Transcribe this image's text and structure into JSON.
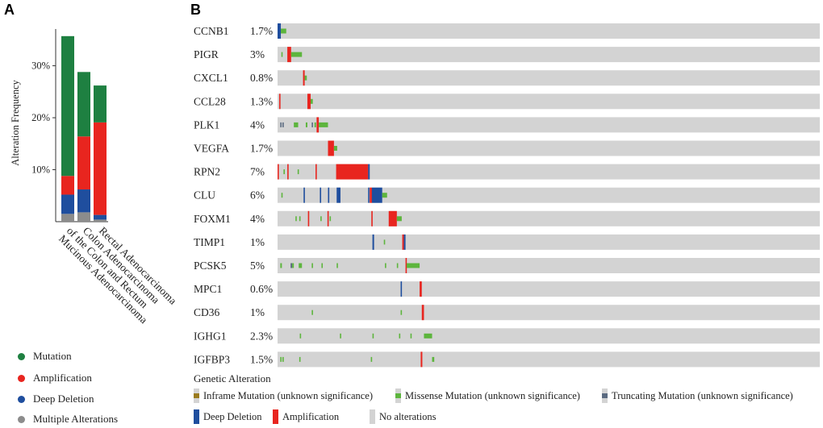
{
  "panel_a": {
    "letter": "A",
    "chart_data": {
      "type": "bar",
      "stacked": true,
      "ylabel": "Alteration Frequency",
      "ylim": [
        0,
        38
      ],
      "yticks": [
        10,
        20,
        30
      ],
      "ytick_labels": [
        "10%",
        "20%",
        "30%"
      ],
      "categories": [
        "Mucinous Adenocarcinoma of the Colon and Rectum",
        "Colon Adenocarcinoma",
        "Rectal Adenocarcinoma"
      ],
      "category_label_lines": [
        [
          "Mucinous Adenocarcinoma",
          "of the Colon and Rectum"
        ],
        [
          "Colon Adenocarcinoma"
        ],
        [
          "Rectal Adenocarcinoma"
        ]
      ],
      "series": [
        {
          "name": "Multiple Alterations",
          "color": "#8c8c8c",
          "values": [
            1.5,
            1.8,
            0.4
          ]
        },
        {
          "name": "Deep Deletion",
          "color": "#1f4e9e",
          "values": [
            3.7,
            4.4,
            0.9
          ]
        },
        {
          "name": "Amplification",
          "color": "#e8251f",
          "values": [
            3.6,
            10.2,
            17.8
          ]
        },
        {
          "name": "Mutation",
          "color": "#1e8041",
          "values": [
            26.9,
            12.4,
            7.1
          ]
        }
      ]
    },
    "legend": [
      {
        "label": "Mutation",
        "color": "#1e8041"
      },
      {
        "label": "Amplification",
        "color": "#e8251f"
      },
      {
        "label": "Deep Deletion",
        "color": "#1f4e9e"
      },
      {
        "label": "Multiple Alterations",
        "color": "#8c8c8c"
      }
    ]
  },
  "panel_b": {
    "letter": "B",
    "chart_data": {
      "type": "oncoprint",
      "sample_axis": "fraction of samples (0-1)",
      "colors": {
        "background": "#d3d3d3",
        "missense": "#5db53d",
        "inframe": "#9a7b1e",
        "truncating": "#5a6a80",
        "amplification": "#e8251f",
        "deep_deletion": "#1f4e9e"
      },
      "genes": [
        {
          "name": "CCNB1",
          "pct": "1.7%",
          "events": [
            {
              "t": "deep_deletion",
              "s": 0.0,
              "e": 0.006
            },
            {
              "t": "missense",
              "s": 0.006,
              "e": 0.016,
              "h": "small"
            }
          ]
        },
        {
          "name": "PIGR",
          "pct": "3%",
          "events": [
            {
              "t": "missense",
              "s": 0.007,
              "e": 0.009,
              "h": "small"
            },
            {
              "t": "amplification",
              "s": 0.018,
              "e": 0.025
            },
            {
              "t": "missense",
              "s": 0.025,
              "e": 0.045,
              "h": "small"
            }
          ]
        },
        {
          "name": "CXCL1",
          "pct": "0.8%",
          "events": [
            {
              "t": "amplification",
              "s": 0.047,
              "e": 0.05
            },
            {
              "t": "missense",
              "s": 0.05,
              "e": 0.054,
              "h": "small"
            }
          ]
        },
        {
          "name": "CCL28",
          "pct": "1.3%",
          "events": [
            {
              "t": "amplification",
              "s": 0.003,
              "e": 0.005
            },
            {
              "t": "amplification",
              "s": 0.055,
              "e": 0.061
            },
            {
              "t": "missense",
              "s": 0.061,
              "e": 0.065,
              "h": "small"
            }
          ]
        },
        {
          "name": "PLK1",
          "pct": "4%",
          "events": [
            {
              "t": "truncating",
              "s": 0.005,
              "e": 0.007,
              "h": "small"
            },
            {
              "t": "truncating",
              "s": 0.009,
              "e": 0.011,
              "h": "small"
            },
            {
              "t": "missense",
              "s": 0.03,
              "e": 0.038,
              "h": "small"
            },
            {
              "t": "missense",
              "s": 0.052,
              "e": 0.055,
              "h": "small"
            },
            {
              "t": "truncating",
              "s": 0.063,
              "e": 0.065,
              "h": "small"
            },
            {
              "t": "missense",
              "s": 0.068,
              "e": 0.071,
              "h": "small"
            },
            {
              "t": "amplification",
              "s": 0.072,
              "e": 0.076
            },
            {
              "t": "missense",
              "s": 0.076,
              "e": 0.093,
              "h": "small"
            }
          ]
        },
        {
          "name": "VEGFA",
          "pct": "1.7%",
          "events": [
            {
              "t": "amplification",
              "s": 0.093,
              "e": 0.104
            },
            {
              "t": "missense",
              "s": 0.104,
              "e": 0.11,
              "h": "small"
            }
          ]
        },
        {
          "name": "RPN2",
          "pct": "7%",
          "events": [
            {
              "t": "amplification",
              "s": 0.0,
              "e": 0.002
            },
            {
              "t": "missense",
              "s": 0.011,
              "e": 0.013,
              "h": "small"
            },
            {
              "t": "amplification",
              "s": 0.018,
              "e": 0.02
            },
            {
              "t": "missense",
              "s": 0.037,
              "e": 0.039,
              "h": "small"
            },
            {
              "t": "amplification",
              "s": 0.07,
              "e": 0.072
            },
            {
              "t": "amplification",
              "s": 0.108,
              "e": 0.167
            },
            {
              "t": "deep_deletion",
              "s": 0.167,
              "e": 0.17
            }
          ]
        },
        {
          "name": "CLU",
          "pct": "6%",
          "events": [
            {
              "t": "missense",
              "s": 0.007,
              "e": 0.009,
              "h": "small"
            },
            {
              "t": "deep_deletion",
              "s": 0.048,
              "e": 0.05
            },
            {
              "t": "deep_deletion",
              "s": 0.078,
              "e": 0.08
            },
            {
              "t": "deep_deletion",
              "s": 0.093,
              "e": 0.095
            },
            {
              "t": "deep_deletion",
              "s": 0.109,
              "e": 0.116
            },
            {
              "t": "deep_deletion",
              "s": 0.167,
              "e": 0.169
            },
            {
              "t": "amplification",
              "s": 0.17,
              "e": 0.174
            },
            {
              "t": "deep_deletion",
              "s": 0.174,
              "e": 0.193
            },
            {
              "t": "missense",
              "s": 0.193,
              "e": 0.202,
              "h": "small"
            }
          ]
        },
        {
          "name": "FOXM1",
          "pct": "4%",
          "events": [
            {
              "t": "missense",
              "s": 0.033,
              "e": 0.035,
              "h": "small"
            },
            {
              "t": "missense",
              "s": 0.04,
              "e": 0.042,
              "h": "small"
            },
            {
              "t": "amplification",
              "s": 0.056,
              "e": 0.058
            },
            {
              "t": "missense",
              "s": 0.079,
              "e": 0.081,
              "h": "small"
            },
            {
              "t": "amplification",
              "s": 0.092,
              "e": 0.094
            },
            {
              "t": "missense",
              "s": 0.096,
              "e": 0.098,
              "h": "small"
            },
            {
              "t": "amplification",
              "s": 0.173,
              "e": 0.175
            },
            {
              "t": "amplification",
              "s": 0.205,
              "e": 0.22
            },
            {
              "t": "missense",
              "s": 0.22,
              "e": 0.229,
              "h": "small"
            }
          ]
        },
        {
          "name": "TIMP1",
          "pct": "1%",
          "events": [
            {
              "t": "deep_deletion",
              "s": 0.175,
              "e": 0.178
            },
            {
              "t": "missense",
              "s": 0.196,
              "e": 0.198,
              "h": "small"
            },
            {
              "t": "amplification",
              "s": 0.23,
              "e": 0.233
            },
            {
              "t": "deep_deletion",
              "s": 0.233,
              "e": 0.236
            }
          ]
        },
        {
          "name": "PCSK5",
          "pct": "5%",
          "events": [
            {
              "t": "missense",
              "s": 0.005,
              "e": 0.008,
              "h": "small"
            },
            {
              "t": "truncating",
              "s": 0.024,
              "e": 0.027,
              "h": "small"
            },
            {
              "t": "missense",
              "s": 0.027,
              "e": 0.03,
              "h": "small"
            },
            {
              "t": "missense",
              "s": 0.039,
              "e": 0.045,
              "h": "small"
            },
            {
              "t": "missense",
              "s": 0.063,
              "e": 0.065,
              "h": "small"
            },
            {
              "t": "missense",
              "s": 0.081,
              "e": 0.083,
              "h": "small"
            },
            {
              "t": "missense",
              "s": 0.109,
              "e": 0.111,
              "h": "small"
            },
            {
              "t": "missense",
              "s": 0.198,
              "e": 0.2,
              "h": "small"
            },
            {
              "t": "missense",
              "s": 0.22,
              "e": 0.222,
              "h": "small"
            },
            {
              "t": "amplification",
              "s": 0.236,
              "e": 0.238
            },
            {
              "t": "missense",
              "s": 0.238,
              "e": 0.262,
              "h": "small"
            }
          ]
        },
        {
          "name": "MPC1",
          "pct": "0.6%",
          "events": [
            {
              "t": "deep_deletion",
              "s": 0.227,
              "e": 0.229
            },
            {
              "t": "amplification",
              "s": 0.262,
              "e": 0.266
            }
          ]
        },
        {
          "name": "CD36",
          "pct": "1%",
          "events": [
            {
              "t": "missense",
              "s": 0.063,
              "e": 0.065,
              "h": "small"
            },
            {
              "t": "missense",
              "s": 0.227,
              "e": 0.229,
              "h": "small"
            },
            {
              "t": "amplification",
              "s": 0.266,
              "e": 0.27
            }
          ]
        },
        {
          "name": "IGHG1",
          "pct": "2.3%",
          "events": [
            {
              "t": "missense",
              "s": 0.041,
              "e": 0.043,
              "h": "small"
            },
            {
              "t": "missense",
              "s": 0.115,
              "e": 0.117,
              "h": "small"
            },
            {
              "t": "missense",
              "s": 0.175,
              "e": 0.177,
              "h": "small"
            },
            {
              "t": "missense",
              "s": 0.224,
              "e": 0.226,
              "h": "small"
            },
            {
              "t": "missense",
              "s": 0.245,
              "e": 0.247,
              "h": "small"
            },
            {
              "t": "missense",
              "s": 0.27,
              "e": 0.285,
              "h": "small"
            }
          ]
        },
        {
          "name": "IGFBP3",
          "pct": "1.5%",
          "events": [
            {
              "t": "missense",
              "s": 0.005,
              "e": 0.007,
              "h": "small"
            },
            {
              "t": "missense",
              "s": 0.009,
              "e": 0.011,
              "h": "small"
            },
            {
              "t": "missense",
              "s": 0.04,
              "e": 0.042,
              "h": "small"
            },
            {
              "t": "missense",
              "s": 0.172,
              "e": 0.174,
              "h": "small"
            },
            {
              "t": "amplification",
              "s": 0.264,
              "e": 0.267
            },
            {
              "t": "missense",
              "s": 0.285,
              "e": 0.289,
              "h": "small"
            }
          ]
        }
      ]
    },
    "legend_title": "Genetic Alteration",
    "legend": {
      "inframe": "Inframe Mutation (unknown significance)",
      "missense": "Missense Mutation (unknown significance)",
      "truncating": "Truncating Mutation (unknown significance)",
      "deep_deletion": "Deep Deletion",
      "amplification": "Amplification",
      "no_alterations": "No alterations"
    }
  }
}
